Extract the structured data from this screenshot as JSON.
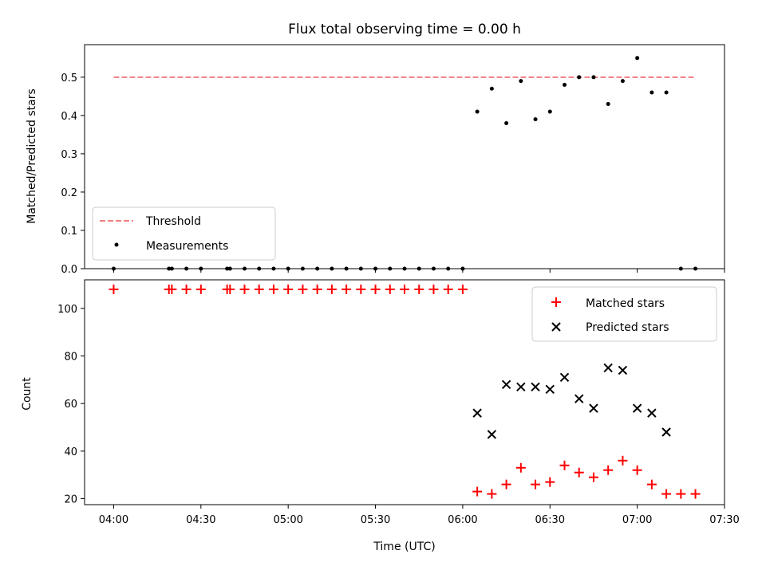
{
  "chart_data": [
    {
      "type": "scatter",
      "title": "Flux total observing time = 0.00 h",
      "xlabel": "",
      "ylabel": "Matched/Predicted stars",
      "xlim": [
        "03:50",
        "07:30"
      ],
      "ylim": [
        0,
        0.585
      ],
      "xticks": [
        "04:00",
        "04:30",
        "05:00",
        "05:30",
        "06:00",
        "06:30",
        "07:00",
        "07:30"
      ],
      "yticks": [
        "0.0",
        "0.1",
        "0.2",
        "0.3",
        "0.4",
        "0.5"
      ],
      "legend": {
        "position": "lower-left",
        "entries": [
          "Threshold",
          "Measurements"
        ]
      },
      "threshold": {
        "name": "Threshold",
        "y": 0.5,
        "x_range": [
          "04:00",
          "07:20"
        ],
        "color": "#f08080",
        "style": "dashed"
      },
      "series": [
        {
          "name": "Measurements",
          "marker": "dot",
          "color": "#000000",
          "points": [
            [
              "04:00",
              0
            ],
            [
              "04:19",
              0
            ],
            [
              "04:20",
              0
            ],
            [
              "04:25",
              0
            ],
            [
              "04:30",
              0
            ],
            [
              "04:39",
              0
            ],
            [
              "04:40",
              0
            ],
            [
              "04:45",
              0
            ],
            [
              "04:50",
              0
            ],
            [
              "04:55",
              0
            ],
            [
              "05:00",
              0
            ],
            [
              "05:05",
              0
            ],
            [
              "05:10",
              0
            ],
            [
              "05:15",
              0
            ],
            [
              "05:20",
              0
            ],
            [
              "05:25",
              0
            ],
            [
              "05:30",
              0
            ],
            [
              "05:35",
              0
            ],
            [
              "05:40",
              0
            ],
            [
              "05:45",
              0
            ],
            [
              "05:50",
              0
            ],
            [
              "05:55",
              0
            ],
            [
              "06:00",
              0
            ],
            [
              "06:05",
              0.41
            ],
            [
              "06:10",
              0.47
            ],
            [
              "06:15",
              0.38
            ],
            [
              "06:20",
              0.49
            ],
            [
              "06:25",
              0.39
            ],
            [
              "06:30",
              0.41
            ],
            [
              "06:35",
              0.48
            ],
            [
              "06:40",
              0.5
            ],
            [
              "06:45",
              0.5
            ],
            [
              "06:50",
              0.43
            ],
            [
              "06:55",
              0.49
            ],
            [
              "07:00",
              0.55
            ],
            [
              "07:05",
              0.46
            ],
            [
              "07:10",
              0.46
            ],
            [
              "07:15",
              0
            ],
            [
              "07:20",
              0
            ]
          ]
        }
      ]
    },
    {
      "type": "scatter",
      "title": "",
      "xlabel": "Time (UTC)",
      "ylabel": "Count",
      "xlim": [
        "03:50",
        "07:30"
      ],
      "ylim": [
        17.5,
        112
      ],
      "xticks": [
        "04:00",
        "04:30",
        "05:00",
        "05:30",
        "06:00",
        "06:30",
        "07:00",
        "07:30"
      ],
      "yticks": [
        "20",
        "40",
        "60",
        "80",
        "100"
      ],
      "legend": {
        "position": "top-right",
        "entries": [
          "Matched stars",
          "Predicted stars"
        ]
      },
      "series": [
        {
          "name": "Matched stars",
          "marker": "plus",
          "color": "#ff0000",
          "points": [
            [
              "04:00",
              108
            ],
            [
              "04:19",
              108
            ],
            [
              "04:20",
              108
            ],
            [
              "04:25",
              108
            ],
            [
              "04:30",
              108
            ],
            [
              "04:39",
              108
            ],
            [
              "04:40",
              108
            ],
            [
              "04:45",
              108
            ],
            [
              "04:50",
              108
            ],
            [
              "04:55",
              108
            ],
            [
              "05:00",
              108
            ],
            [
              "05:05",
              108
            ],
            [
              "05:10",
              108
            ],
            [
              "05:15",
              108
            ],
            [
              "05:20",
              108
            ],
            [
              "05:25",
              108
            ],
            [
              "05:30",
              108
            ],
            [
              "05:35",
              108
            ],
            [
              "05:40",
              108
            ],
            [
              "05:45",
              108
            ],
            [
              "05:50",
              108
            ],
            [
              "05:55",
              108
            ],
            [
              "06:00",
              108
            ],
            [
              "06:05",
              23
            ],
            [
              "06:10",
              22
            ],
            [
              "06:15",
              26
            ],
            [
              "06:20",
              33
            ],
            [
              "06:25",
              26
            ],
            [
              "06:30",
              27
            ],
            [
              "06:35",
              34
            ],
            [
              "06:40",
              31
            ],
            [
              "06:45",
              29
            ],
            [
              "06:50",
              32
            ],
            [
              "06:55",
              36
            ],
            [
              "07:00",
              32
            ],
            [
              "07:05",
              26
            ],
            [
              "07:10",
              22
            ],
            [
              "07:15",
              22
            ],
            [
              "07:20",
              22
            ]
          ]
        },
        {
          "name": "Predicted stars",
          "marker": "x",
          "color": "#000000",
          "points": [
            [
              "06:05",
              56
            ],
            [
              "06:10",
              47
            ],
            [
              "06:15",
              68
            ],
            [
              "06:20",
              67
            ],
            [
              "06:25",
              67
            ],
            [
              "06:30",
              66
            ],
            [
              "06:35",
              71
            ],
            [
              "06:40",
              62
            ],
            [
              "06:45",
              58
            ],
            [
              "06:50",
              75
            ],
            [
              "06:55",
              74
            ],
            [
              "07:00",
              58
            ],
            [
              "07:05",
              56
            ],
            [
              "07:10",
              48
            ]
          ]
        }
      ]
    }
  ]
}
